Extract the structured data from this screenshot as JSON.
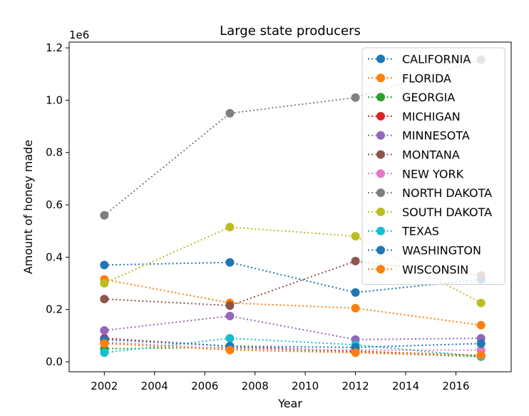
{
  "chart_data": {
    "type": "line",
    "title": "Large state producers",
    "xlabel": "Year",
    "ylabel": "Amount of honey made",
    "y_offset_label": "1e6",
    "x": [
      2002,
      2007,
      2012,
      2017
    ],
    "xlim": [
      2000.6,
      2018.2
    ],
    "ylim": [
      -0.038,
      1.222
    ],
    "xticks": [
      2002,
      2004,
      2006,
      2008,
      2010,
      2012,
      2014,
      2016
    ],
    "xtick_labels": [
      "2002",
      "2004",
      "2006",
      "2008",
      "2010",
      "2012",
      "2014",
      "2016"
    ],
    "yticks": [
      0.0,
      0.2,
      0.4,
      0.6,
      0.8,
      1.0,
      1.2
    ],
    "ytick_labels": [
      "0.0",
      "0.2",
      "0.4",
      "0.6",
      "0.8",
      "1.0",
      "1.2"
    ],
    "grid": false,
    "legend_position": "top-right",
    "series": [
      {
        "name": "CALIFORNIA",
        "color": "#1f77b4",
        "values": [
          0.37,
          0.38,
          0.265,
          0.315
        ]
      },
      {
        "name": "FLORIDA",
        "color": "#ff7f0e",
        "values": [
          0.315,
          0.225,
          0.205,
          0.14
        ]
      },
      {
        "name": "GEORGIA",
        "color": "#2ca02c",
        "values": [
          0.05,
          0.055,
          0.035,
          0.02
        ]
      },
      {
        "name": "MICHIGAN",
        "color": "#d62728",
        "values": [
          0.09,
          0.06,
          0.04,
          0.025
        ]
      },
      {
        "name": "MINNESOTA",
        "color": "#9467bd",
        "values": [
          0.12,
          0.175,
          0.085,
          0.09
        ]
      },
      {
        "name": "MONTANA",
        "color": "#8c564b",
        "values": [
          0.24,
          0.215,
          0.385,
          0.33
        ]
      },
      {
        "name": "NEW YORK",
        "color": "#e377c2",
        "values": [
          0.075,
          0.05,
          0.045,
          0.045
        ]
      },
      {
        "name": "NORTH DAKOTA",
        "color": "#7f7f7f",
        "values": [
          0.56,
          0.95,
          1.01,
          1.155
        ]
      },
      {
        "name": "SOUTH DAKOTA",
        "color": "#bcbd22",
        "values": [
          0.3,
          0.515,
          0.48,
          0.225
        ]
      },
      {
        "name": "TEXAS",
        "color": "#17becf",
        "values": [
          0.035,
          0.09,
          0.065,
          0.02
        ]
      },
      {
        "name": "WASHINGTON",
        "color": "#1f77b4",
        "values": [
          0.085,
          0.06,
          0.055,
          0.07
        ]
      },
      {
        "name": "WISCONSIN",
        "color": "#ff7f0e",
        "values": [
          0.07,
          0.045,
          0.035,
          0.025
        ]
      }
    ]
  }
}
